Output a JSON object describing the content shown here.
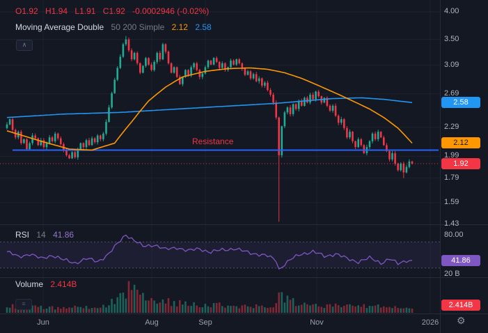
{
  "colors": {
    "background": "#141823",
    "up": "#22ab94",
    "down": "#f23645",
    "ma50": "#ff9800",
    "ma200": "#2196f3",
    "resistance_line": "#2962ff",
    "rsi_line": "#7e57c2",
    "badge_ma50_bg": "#ff9800",
    "badge_ma200_bg": "#2196f3",
    "badge_last_bg": "#f23645",
    "badge_rsi_bg": "#7e57c2",
    "badge_volume_bg": "#f23645",
    "axis_text": "#b2b5be"
  },
  "legend": {
    "ohlc": {
      "tokens": [
        "O1.92",
        "H1.94",
        "L1.91",
        "C1.92",
        "-0.0002946 (-0.02%)"
      ]
    },
    "ma": {
      "title": "Moving Average Double",
      "params": "50 200 Simple",
      "ma50_value": "2.12",
      "ma200_value": "2.58"
    },
    "rsi": {
      "title": "RSI",
      "params": "14",
      "value": "41.86"
    },
    "volume": {
      "title": "Volume",
      "value": "2.414B"
    }
  },
  "annotations": {
    "resistance_label": "Resistance"
  },
  "badges": {
    "ma200": "2.58",
    "ma50": "2.12",
    "last": "1.92",
    "rsi": "41.86",
    "volume": "2.414B"
  },
  "axis": {
    "price_ticks": [
      {
        "label": "4.00",
        "value": 4.0
      },
      {
        "label": "3.50",
        "value": 3.5
      },
      {
        "label": "3.09",
        "value": 3.09
      },
      {
        "label": "2.69",
        "value": 2.69
      },
      {
        "label": "2.29",
        "value": 2.29
      },
      {
        "label": "1.99",
        "value": 1.99
      },
      {
        "label": "1.79",
        "value": 1.79
      },
      {
        "label": "1.59",
        "value": 1.59
      },
      {
        "label": "1.43",
        "value": 1.43
      }
    ],
    "rsi_top_label": "80.00",
    "rsi_bottom_label": "20 B",
    "time_labels": [
      "Jun",
      "Aug",
      "Sep",
      "Nov",
      "2026"
    ]
  },
  "icons": {
    "collapse": "chevron-up-icon",
    "pane_menu": "menu-icon",
    "settings": "gear-icon"
  },
  "chart_data": [
    {
      "type": "candlestick",
      "name": "price",
      "log_scale": true,
      "y_ticks": [
        4.0,
        3.5,
        3.09,
        2.69,
        2.29,
        1.99,
        1.79,
        1.59,
        1.43
      ],
      "open_first": 2.28,
      "closes": [
        2.32,
        2.38,
        2.26,
        2.18,
        2.24,
        2.12,
        2.16,
        2.06,
        2.12,
        2.2,
        2.17,
        2.1,
        2.15,
        2.08,
        2.12,
        2.18,
        2.14,
        2.22,
        2.17,
        2.11,
        2.05,
        2.0,
        1.97,
        2.03,
        1.98,
        2.06,
        2.12,
        2.08,
        2.15,
        2.1,
        2.17,
        2.13,
        2.2,
        2.16,
        2.22,
        2.35,
        2.52,
        2.7,
        2.88,
        3.05,
        3.22,
        3.42,
        3.5,
        3.32,
        3.18,
        3.28,
        3.12,
        2.98,
        3.08,
        3.2,
        3.1,
        3.02,
        3.14,
        3.28,
        3.18,
        3.42,
        3.3,
        3.12,
        2.98,
        3.06,
        2.92,
        2.82,
        2.92,
        3.02,
        2.94,
        3.06,
        3.12,
        3.02,
        2.92,
        2.97,
        3.06,
        3.16,
        3.1,
        3.2,
        3.14,
        3.05,
        3.12,
        3.02,
        3.06,
        3.16,
        3.1,
        3.18,
        3.12,
        3.04,
        2.95,
        3.0,
        2.9,
        2.96,
        2.86,
        2.9,
        2.8,
        2.84,
        2.74,
        2.68,
        2.58,
        2.4,
        2.0,
        2.3,
        2.46,
        2.52,
        2.44,
        2.56,
        2.5,
        2.6,
        2.54,
        2.64,
        2.58,
        2.68,
        2.62,
        2.72,
        2.66,
        2.58,
        2.64,
        2.54,
        2.48,
        2.54,
        2.42,
        2.34,
        2.38,
        2.28,
        2.18,
        2.24,
        2.14,
        2.08,
        2.16,
        2.1,
        2.02,
        2.08,
        2.14,
        2.22,
        2.16,
        2.24,
        2.18,
        2.1,
        2.04,
        1.96,
        2.02,
        1.92,
        1.86,
        1.92,
        1.84,
        1.89,
        1.94,
        1.92
      ],
      "wick_high_override": {
        "42": 3.56
      },
      "wick_low_override": {
        "96": 1.45,
        "140": 1.79
      },
      "ma50_anchors": [
        [
          0,
          2.25
        ],
        [
          12,
          2.14
        ],
        [
          22,
          2.06
        ],
        [
          30,
          2.05
        ],
        [
          38,
          2.12
        ],
        [
          44,
          2.35
        ],
        [
          50,
          2.6
        ],
        [
          56,
          2.78
        ],
        [
          62,
          2.92
        ],
        [
          70,
          3.0
        ],
        [
          78,
          3.04
        ],
        [
          86,
          3.05
        ],
        [
          92,
          3.03
        ],
        [
          98,
          2.98
        ],
        [
          104,
          2.9
        ],
        [
          110,
          2.8
        ],
        [
          116,
          2.7
        ],
        [
          122,
          2.6
        ],
        [
          128,
          2.5
        ],
        [
          133,
          2.4
        ],
        [
          138,
          2.28
        ],
        [
          143,
          2.12
        ]
      ],
      "ma200_anchors": [
        [
          0,
          2.4
        ],
        [
          20,
          2.44
        ],
        [
          40,
          2.46
        ],
        [
          60,
          2.5
        ],
        [
          80,
          2.54
        ],
        [
          95,
          2.57
        ],
        [
          105,
          2.6
        ],
        [
          115,
          2.63
        ],
        [
          125,
          2.64
        ],
        [
          133,
          2.62
        ],
        [
          143,
          2.58
        ]
      ],
      "resistance": 2.05,
      "last_values": {
        "close": 1.92,
        "ma50": 2.12,
        "ma200": 2.58
      }
    },
    {
      "type": "line",
      "name": "RSI 14",
      "levels": {
        "upper": 70,
        "lower": 30,
        "top_label": 80,
        "bottom_label": 20
      },
      "anchors": [
        [
          0,
          55
        ],
        [
          4,
          47
        ],
        [
          8,
          52
        ],
        [
          12,
          44
        ],
        [
          16,
          50
        ],
        [
          20,
          42
        ],
        [
          24,
          38
        ],
        [
          28,
          44
        ],
        [
          32,
          40
        ],
        [
          36,
          52
        ],
        [
          40,
          72
        ],
        [
          42,
          82
        ],
        [
          45,
          72
        ],
        [
          48,
          63
        ],
        [
          52,
          66
        ],
        [
          56,
          58
        ],
        [
          60,
          62
        ],
        [
          64,
          56
        ],
        [
          68,
          60
        ],
        [
          72,
          54
        ],
        [
          76,
          58
        ],
        [
          80,
          60
        ],
        [
          84,
          55
        ],
        [
          88,
          52
        ],
        [
          92,
          48
        ],
        [
          95,
          42
        ],
        [
          96,
          28
        ],
        [
          98,
          36
        ],
        [
          101,
          45
        ],
        [
          104,
          52
        ],
        [
          108,
          55
        ],
        [
          112,
          48
        ],
        [
          116,
          52
        ],
        [
          120,
          44
        ],
        [
          124,
          40
        ],
        [
          128,
          45
        ],
        [
          132,
          38
        ],
        [
          135,
          44
        ],
        [
          138,
          36
        ],
        [
          141,
          42
        ],
        [
          143,
          41.86
        ]
      ],
      "last": 41.86
    },
    {
      "type": "bar",
      "name": "Volume",
      "unit": "B",
      "scale_max": 20,
      "env_anchors": [
        [
          0,
          5
        ],
        [
          10,
          4
        ],
        [
          20,
          3.5
        ],
        [
          30,
          4
        ],
        [
          36,
          6
        ],
        [
          40,
          14
        ],
        [
          44,
          18
        ],
        [
          48,
          12
        ],
        [
          52,
          9
        ],
        [
          60,
          7
        ],
        [
          70,
          6
        ],
        [
          80,
          5
        ],
        [
          88,
          4.5
        ],
        [
          94,
          6
        ],
        [
          96,
          16
        ],
        [
          98,
          10
        ],
        [
          104,
          6
        ],
        [
          110,
          5
        ],
        [
          116,
          5.5
        ],
        [
          122,
          4.5
        ],
        [
          128,
          5
        ],
        [
          134,
          4
        ],
        [
          140,
          3
        ],
        [
          143,
          2.414
        ]
      ],
      "last": 2.414
    }
  ]
}
